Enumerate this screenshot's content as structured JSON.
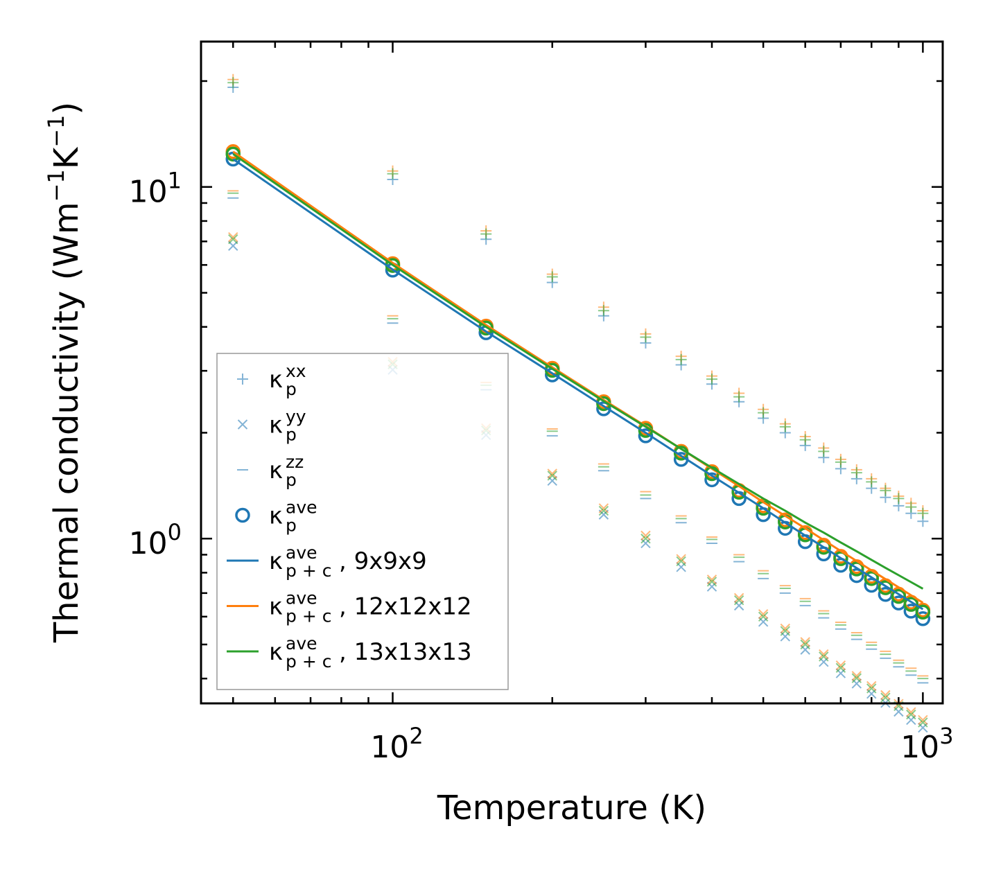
{
  "chart_data": {
    "type": "scatter",
    "xscale": "log",
    "yscale": "log",
    "xlim": [
      43.5,
      1090
    ],
    "ylim": [
      0.34,
      25.9
    ],
    "xlabel": "Temperature (K)",
    "ylabel": {
      "main": "Thermal conductivity (Wm",
      "sup1": "−1",
      "mid": "K",
      "sup2": "−1",
      "close": ")"
    },
    "xticks": [
      {
        "value": 100,
        "base": "10",
        "exp": "2"
      },
      {
        "value": 1000,
        "base": "10",
        "exp": "3"
      }
    ],
    "yticks": [
      {
        "value": 1,
        "base": "10",
        "exp": "0"
      },
      {
        "value": 10,
        "base": "10",
        "exp": "1"
      }
    ],
    "x": [
      50,
      100,
      150,
      200,
      250,
      300,
      350,
      400,
      450,
      500,
      550,
      600,
      650,
      700,
      750,
      800,
      850,
      900,
      950,
      1000
    ],
    "colors": {
      "blue": "#1f77b4",
      "orange": "#ff7f0e",
      "green": "#2ca02c"
    },
    "scatter_series": [
      {
        "name": "kxx-9",
        "marker": "plus",
        "color": "#1f77b4",
        "values": [
          19.2,
          10.5,
          7.1,
          5.35,
          4.3,
          3.6,
          3.12,
          2.75,
          2.45,
          2.2,
          2.0,
          1.84,
          1.7,
          1.58,
          1.48,
          1.39,
          1.31,
          1.24,
          1.18,
          1.12
        ]
      },
      {
        "name": "kxx-12",
        "marker": "plus",
        "color": "#ff7f0e",
        "values": [
          20.2,
          11.1,
          7.5,
          5.65,
          4.55,
          3.82,
          3.3,
          2.9,
          2.59,
          2.33,
          2.12,
          1.95,
          1.81,
          1.68,
          1.57,
          1.48,
          1.39,
          1.32,
          1.26,
          1.2
        ]
      },
      {
        "name": "kxx-13",
        "marker": "plus",
        "color": "#2ca02c",
        "values": [
          19.8,
          10.9,
          7.35,
          5.55,
          4.45,
          3.74,
          3.23,
          2.84,
          2.53,
          2.28,
          2.08,
          1.91,
          1.77,
          1.65,
          1.54,
          1.45,
          1.37,
          1.3,
          1.23,
          1.18
        ]
      },
      {
        "name": "kyy-9",
        "marker": "x",
        "color": "#1f77b4",
        "values": [
          6.8,
          3.02,
          1.97,
          1.46,
          1.17,
          0.97,
          0.83,
          0.73,
          0.645,
          0.58,
          0.527,
          0.483,
          0.446,
          0.414,
          0.387,
          0.362,
          0.341,
          0.322,
          0.305,
          0.29
        ]
      },
      {
        "name": "kyy-12",
        "marker": "x",
        "color": "#ff7f0e",
        "values": [
          7.2,
          3.18,
          2.06,
          1.53,
          1.22,
          1.02,
          0.875,
          0.765,
          0.678,
          0.61,
          0.555,
          0.508,
          0.469,
          0.436,
          0.407,
          0.381,
          0.359,
          0.339,
          0.321,
          0.305
        ]
      },
      {
        "name": "kyy-13",
        "marker": "x",
        "color": "#2ca02c",
        "values": [
          7.1,
          3.13,
          2.03,
          1.51,
          1.2,
          1.0,
          0.862,
          0.754,
          0.668,
          0.6,
          0.546,
          0.5,
          0.462,
          0.429,
          0.401,
          0.375,
          0.353,
          0.334,
          0.316,
          0.3
        ]
      },
      {
        "name": "kzz-9",
        "marker": "dash",
        "color": "#1f77b4",
        "values": [
          9.3,
          4.1,
          2.65,
          1.96,
          1.56,
          1.3,
          1.11,
          0.97,
          0.86,
          0.77,
          0.7,
          0.645,
          0.595,
          0.553,
          0.517,
          0.485,
          0.457,
          0.432,
          0.409,
          0.389
        ]
      },
      {
        "name": "kzz-12",
        "marker": "dash",
        "color": "#ff7f0e",
        "values": [
          9.75,
          4.3,
          2.78,
          2.05,
          1.63,
          1.36,
          1.16,
          1.01,
          0.9,
          0.81,
          0.735,
          0.675,
          0.623,
          0.578,
          0.54,
          0.507,
          0.478,
          0.451,
          0.428,
          0.407
        ]
      },
      {
        "name": "kzz-13",
        "marker": "dash",
        "color": "#2ca02c",
        "values": [
          9.6,
          4.22,
          2.73,
          2.02,
          1.6,
          1.33,
          1.14,
          0.995,
          0.885,
          0.795,
          0.722,
          0.663,
          0.612,
          0.568,
          0.531,
          0.498,
          0.469,
          0.443,
          0.42,
          0.4
        ]
      },
      {
        "name": "kave-9",
        "marker": "circle",
        "color": "#1f77b4",
        "values": [
          12.0,
          5.8,
          3.85,
          2.92,
          2.34,
          1.96,
          1.68,
          1.47,
          1.3,
          1.17,
          1.07,
          0.98,
          0.905,
          0.84,
          0.785,
          0.737,
          0.694,
          0.656,
          0.622,
          0.592
        ]
      },
      {
        "name": "kave-12",
        "marker": "circle",
        "color": "#ff7f0e",
        "values": [
          12.6,
          6.05,
          4.02,
          3.05,
          2.45,
          2.06,
          1.77,
          1.55,
          1.37,
          1.24,
          1.13,
          1.04,
          0.958,
          0.89,
          0.832,
          0.781,
          0.735,
          0.695,
          0.659,
          0.626
        ]
      },
      {
        "name": "kave-13",
        "marker": "circle",
        "color": "#2ca02c",
        "values": [
          12.4,
          5.98,
          3.97,
          3.01,
          2.42,
          2.03,
          1.75,
          1.53,
          1.355,
          1.22,
          1.115,
          1.025,
          0.945,
          0.877,
          0.82,
          0.77,
          0.725,
          0.685,
          0.65,
          0.618
        ]
      }
    ],
    "line_series": [
      {
        "name": "kpc-9x9x9",
        "color": "#1f77b4",
        "values": [
          12.0,
          5.82,
          3.88,
          2.95,
          2.38,
          2.0,
          1.72,
          1.51,
          1.35,
          1.22,
          1.11,
          1.02,
          0.945,
          0.88,
          0.825,
          0.776,
          0.733,
          0.695,
          0.661,
          0.63
        ]
      },
      {
        "name": "kpc-12x12x12",
        "color": "#ff7f0e",
        "values": [
          12.6,
          6.08,
          4.05,
          3.07,
          2.48,
          2.09,
          1.8,
          1.58,
          1.41,
          1.27,
          1.16,
          1.07,
          0.99,
          0.922,
          0.864,
          0.812,
          0.767,
          0.727,
          0.69,
          0.657
        ]
      },
      {
        "name": "kpc-13x13x13",
        "color": "#2ca02c",
        "values": [
          12.4,
          6.0,
          4.0,
          3.04,
          2.46,
          2.08,
          1.8,
          1.59,
          1.43,
          1.3,
          1.2,
          1.11,
          1.04,
          0.975,
          0.92,
          0.87,
          0.826,
          0.787,
          0.752,
          0.72
        ]
      }
    ],
    "legend": {
      "position": "lower-left",
      "entries": [
        {
          "marker": "plus",
          "color": "#1f77b4",
          "sym": "κ",
          "sup": "xx",
          "sub": "p",
          "suffix": ""
        },
        {
          "marker": "x",
          "color": "#1f77b4",
          "sym": "κ",
          "sup": "yy",
          "sub": "p",
          "suffix": ""
        },
        {
          "marker": "dash",
          "color": "#1f77b4",
          "sym": "κ",
          "sup": "zz",
          "sub": "p",
          "suffix": ""
        },
        {
          "marker": "circle",
          "color": "#1f77b4",
          "sym": "κ",
          "sup": "ave",
          "sub": "p",
          "suffix": ""
        },
        {
          "marker": "line",
          "color": "#1f77b4",
          "sym": "κ",
          "sup": "ave",
          "sub": "p + c",
          "suffix": ", 9x9x9"
        },
        {
          "marker": "line",
          "color": "#ff7f0e",
          "sym": "κ",
          "sup": "ave",
          "sub": "p + c",
          "suffix": ", 12x12x12"
        },
        {
          "marker": "line",
          "color": "#2ca02c",
          "sym": "κ",
          "sup": "ave",
          "sub": "p + c",
          "suffix": ", 13x13x13"
        }
      ]
    }
  }
}
